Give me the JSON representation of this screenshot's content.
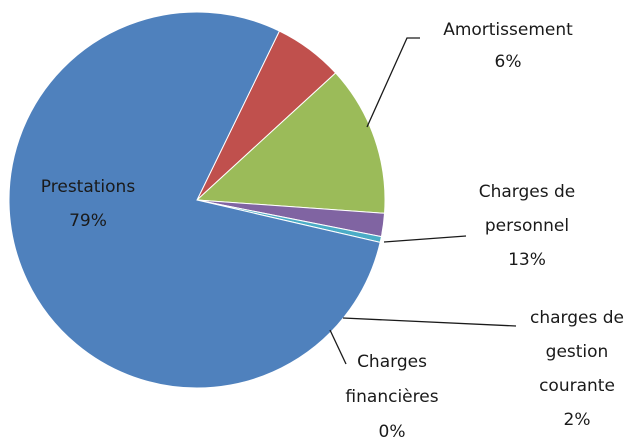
{
  "chart_data": {
    "type": "pie",
    "title": "",
    "start_angle_deg": 26,
    "direction": "clockwise",
    "slices": [
      {
        "label": "Amortissement",
        "percent_label": "6%",
        "value": 6,
        "color": "#c0504d"
      },
      {
        "label": "Charges de personnel",
        "percent_label": "13%",
        "value": 13,
        "color": "#9bbb59"
      },
      {
        "label": "charges de gestion courante",
        "percent_label": "2%",
        "value": 2,
        "color": "#8064a2"
      },
      {
        "label": "Charges financières",
        "percent_label": "0%",
        "value": 0.5,
        "color": "#4bacc6"
      },
      {
        "label": "Prestations",
        "percent_label": "79%",
        "value": 79,
        "color": "#4f81bd"
      }
    ]
  }
}
